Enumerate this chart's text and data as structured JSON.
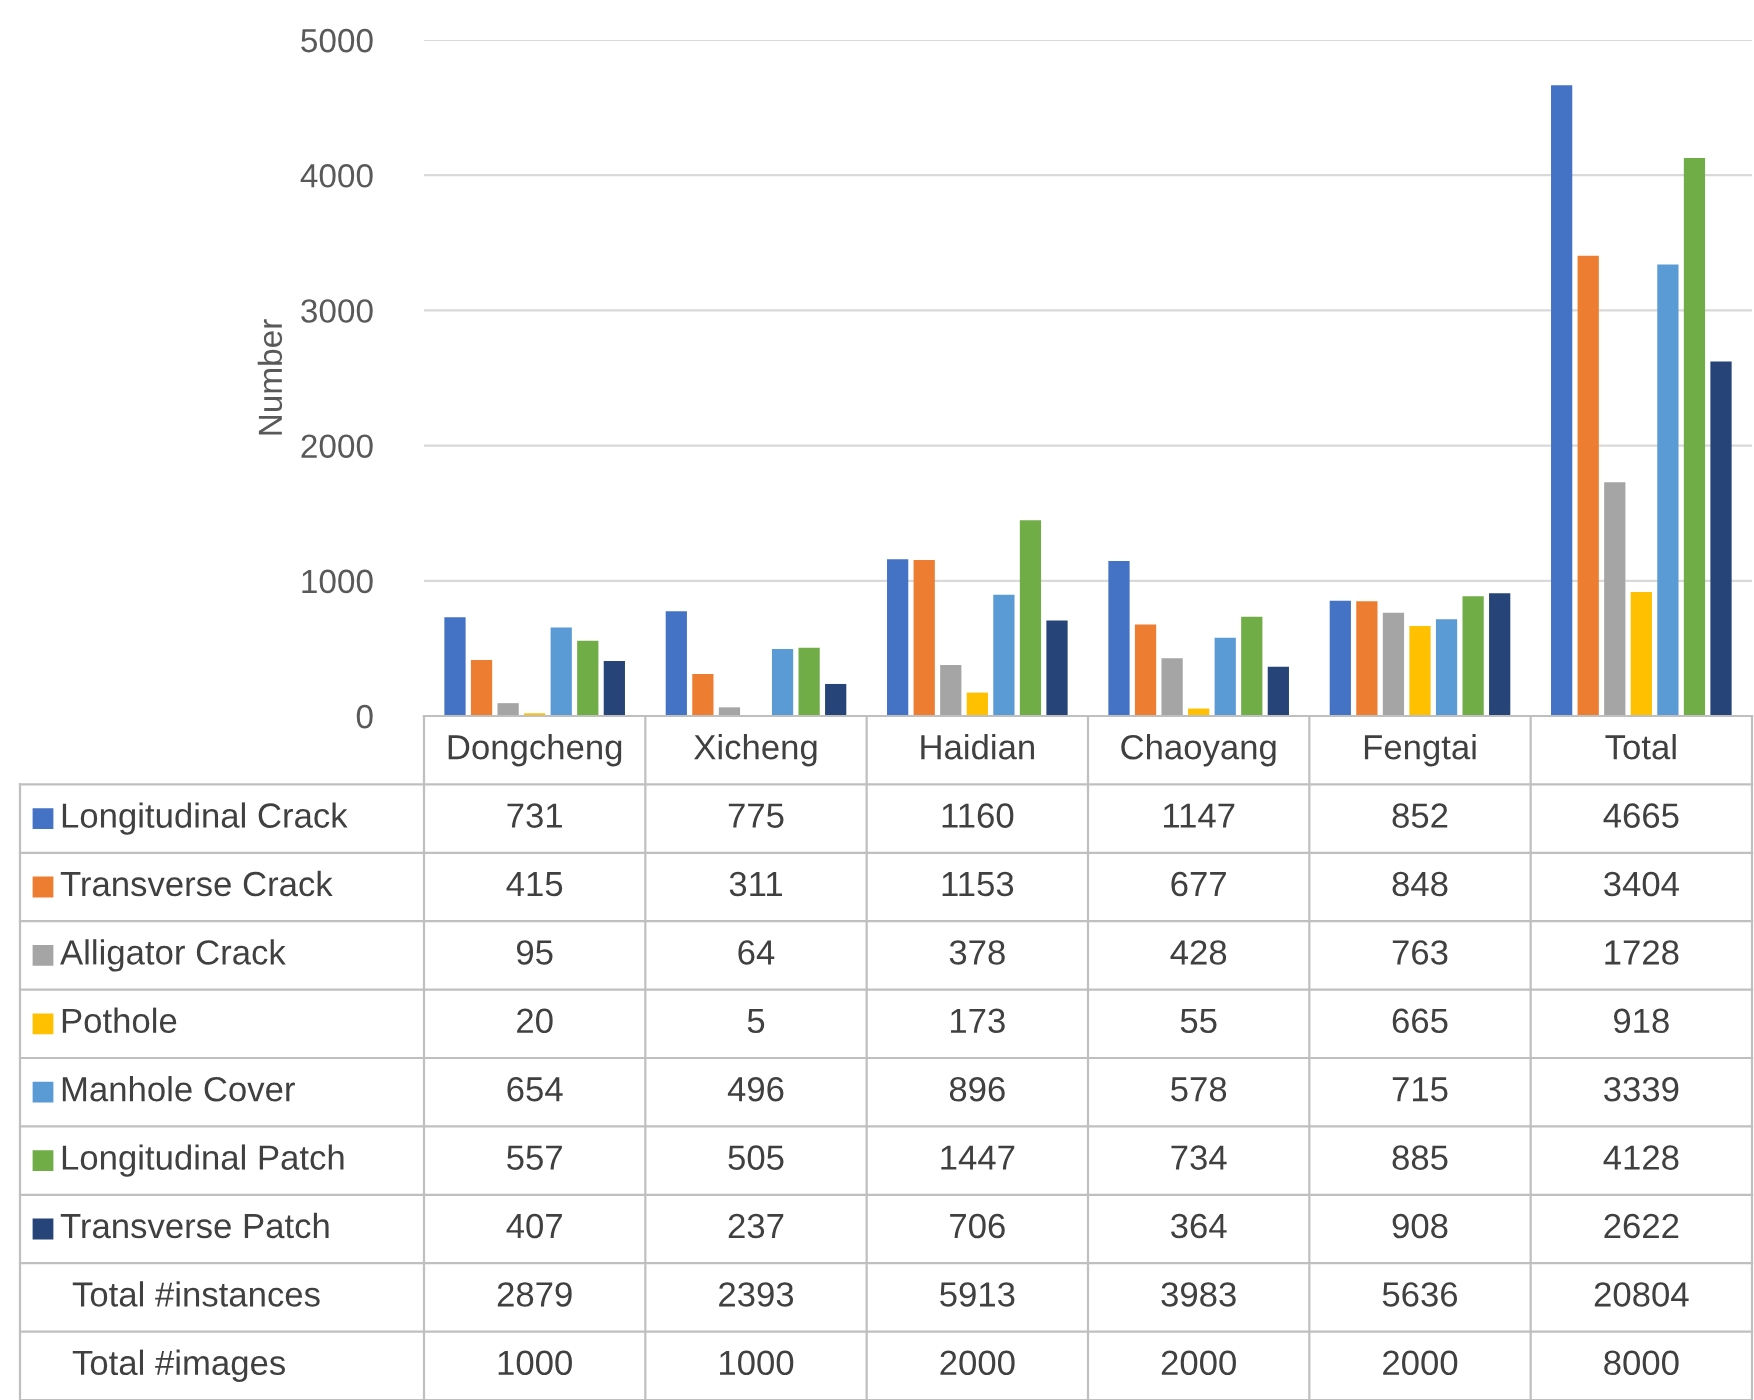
{
  "chart_data": {
    "type": "bar",
    "ylabel": "Number",
    "categories": [
      "Dongcheng",
      "Xicheng",
      "Haidian",
      "Chaoyang",
      "Fengtai",
      "Total"
    ],
    "series": [
      {
        "name": "Longitudinal Crack",
        "color": "#4472c4",
        "values": [
          731,
          775,
          1160,
          1147,
          852,
          4665
        ]
      },
      {
        "name": "Transverse Crack",
        "color": "#ed7d31",
        "values": [
          415,
          311,
          1153,
          677,
          848,
          3404
        ]
      },
      {
        "name": "Alligator Crack",
        "color": "#a5a5a5",
        "values": [
          95,
          64,
          378,
          428,
          763,
          1728
        ]
      },
      {
        "name": "Pothole",
        "color": "#ffc000",
        "values": [
          20,
          5,
          173,
          55,
          665,
          918
        ]
      },
      {
        "name": "Manhole Cover",
        "color": "#5b9bd5",
        "values": [
          654,
          496,
          896,
          578,
          715,
          3339
        ]
      },
      {
        "name": "Longitudinal Patch",
        "color": "#70ad47",
        "values": [
          557,
          505,
          1447,
          734,
          885,
          4128
        ]
      },
      {
        "name": "Transverse Patch",
        "color": "#264478",
        "values": [
          407,
          237,
          706,
          364,
          908,
          2622
        ]
      }
    ],
    "ylim": [
      0,
      5000
    ],
    "yticks": [
      0,
      1000,
      2000,
      3000,
      4000,
      5000
    ],
    "grid": "y",
    "legend": "bottom",
    "data_labels": true,
    "annotations": [
      "Total #instances",
      "2879",
      "2393",
      "5913",
      "3983",
      "5636",
      "20804",
      "Total #images",
      "1000",
      "1000",
      "2000",
      "2000",
      "2000",
      "8000"
    ]
  }
}
